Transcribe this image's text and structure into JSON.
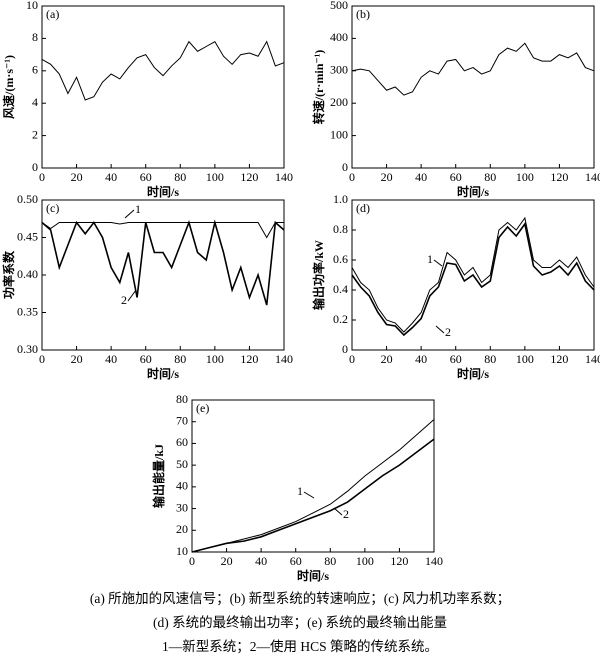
{
  "chart_data": [
    {
      "type": "line",
      "panel_label": "(a)",
      "xlabel": "时间/s",
      "ylabel": "风速/(m·s⁻¹)",
      "x": [
        0,
        5,
        10,
        15,
        20,
        25,
        30,
        35,
        40,
        45,
        50,
        55,
        60,
        65,
        70,
        75,
        80,
        85,
        90,
        95,
        100,
        105,
        110,
        115,
        120,
        125,
        130,
        135,
        140
      ],
      "values": [
        6.7,
        6.4,
        5.8,
        4.6,
        5.6,
        4.2,
        4.4,
        5.3,
        5.8,
        5.5,
        6.2,
        6.8,
        7.0,
        6.2,
        5.7,
        6.3,
        6.8,
        7.8,
        7.2,
        7.5,
        7.8,
        6.9,
        6.4,
        7.0,
        7.1,
        6.9,
        7.8,
        6.3,
        6.5
      ],
      "color": "#000000",
      "xlim": [
        0,
        140
      ],
      "xticks": [
        0,
        20,
        40,
        60,
        80,
        100,
        120,
        140
      ],
      "ylim": [
        0,
        10
      ],
      "yticks": [
        0,
        2,
        4,
        6,
        8,
        10
      ]
    },
    {
      "type": "line",
      "panel_label": "(b)",
      "xlabel": "时间/s",
      "ylabel": "转速/(r·min⁻¹)",
      "x": [
        0,
        5,
        10,
        15,
        20,
        25,
        30,
        35,
        40,
        45,
        50,
        55,
        60,
        65,
        70,
        75,
        80,
        85,
        90,
        95,
        100,
        105,
        110,
        115,
        120,
        125,
        130,
        135,
        140
      ],
      "values": [
        300,
        305,
        300,
        270,
        240,
        250,
        225,
        235,
        280,
        300,
        290,
        330,
        335,
        300,
        310,
        290,
        300,
        350,
        370,
        360,
        385,
        340,
        330,
        330,
        350,
        340,
        355,
        310,
        300
      ],
      "color": "#000000",
      "xlim": [
        0,
        140
      ],
      "xticks": [
        0,
        20,
        40,
        60,
        80,
        100,
        120,
        140
      ],
      "ylim": [
        0,
        500
      ],
      "yticks": [
        0,
        100,
        200,
        300,
        400,
        500
      ]
    },
    {
      "type": "line",
      "panel_label": "(c)",
      "xlabel": "时间/s",
      "ylabel": "功率系数",
      "x": [
        0,
        5,
        10,
        15,
        20,
        25,
        30,
        35,
        40,
        45,
        50,
        55,
        60,
        65,
        70,
        75,
        80,
        85,
        90,
        95,
        100,
        105,
        110,
        115,
        120,
        125,
        130,
        135,
        140
      ],
      "series": [
        {
          "name": "1",
          "color": "#000000",
          "values": [
            0.47,
            0.462,
            0.47,
            0.47,
            0.47,
            0.47,
            0.47,
            0.47,
            0.47,
            0.468,
            0.47,
            0.47,
            0.47,
            0.47,
            0.47,
            0.47,
            0.47,
            0.47,
            0.47,
            0.47,
            0.47,
            0.47,
            0.47,
            0.47,
            0.47,
            0.47,
            0.45,
            0.47,
            0.47
          ]
        },
        {
          "name": "2",
          "color": "#000000",
          "values": [
            0.47,
            0.46,
            0.41,
            0.44,
            0.47,
            0.455,
            0.47,
            0.45,
            0.41,
            0.39,
            0.43,
            0.37,
            0.47,
            0.43,
            0.43,
            0.41,
            0.44,
            0.47,
            0.43,
            0.42,
            0.47,
            0.43,
            0.38,
            0.41,
            0.37,
            0.4,
            0.36,
            0.47,
            0.46
          ]
        }
      ],
      "xlim": [
        0,
        140
      ],
      "xticks": [
        0,
        20,
        40,
        60,
        80,
        100,
        120,
        140
      ],
      "ylim": [
        0.3,
        0.5
      ],
      "yticks": [
        {
          "value": 0.3,
          "label": "0.30"
        },
        0.35,
        {
          "value": 0.4,
          "label": "0.40"
        },
        0.45,
        {
          "value": 0.5,
          "label": "0.50"
        }
      ]
    },
    {
      "type": "line",
      "panel_label": "(d)",
      "xlabel": "时间/s",
      "ylabel": "输出功率/kW",
      "x": [
        0,
        5,
        10,
        15,
        20,
        25,
        30,
        35,
        40,
        45,
        50,
        55,
        60,
        65,
        70,
        75,
        80,
        85,
        90,
        95,
        100,
        105,
        110,
        115,
        120,
        125,
        130,
        135,
        140
      ],
      "series": [
        {
          "name": "1",
          "color": "#000000",
          "values": [
            0.55,
            0.45,
            0.4,
            0.28,
            0.2,
            0.18,
            0.12,
            0.18,
            0.25,
            0.4,
            0.45,
            0.65,
            0.6,
            0.5,
            0.55,
            0.45,
            0.5,
            0.8,
            0.85,
            0.8,
            0.88,
            0.6,
            0.55,
            0.55,
            0.6,
            0.55,
            0.62,
            0.5,
            0.42
          ]
        },
        {
          "name": "2",
          "color": "#000000",
          "values": [
            0.5,
            0.42,
            0.36,
            0.25,
            0.17,
            0.16,
            0.1,
            0.15,
            0.21,
            0.36,
            0.42,
            0.58,
            0.57,
            0.46,
            0.5,
            0.42,
            0.46,
            0.75,
            0.82,
            0.76,
            0.84,
            0.56,
            0.5,
            0.52,
            0.56,
            0.5,
            0.58,
            0.46,
            0.4
          ]
        }
      ],
      "xlim": [
        0,
        140
      ],
      "xticks": [
        0,
        20,
        40,
        60,
        80,
        100,
        120,
        140
      ],
      "ylim": [
        0,
        1
      ],
      "yticks": [
        0,
        0.2,
        0.4,
        0.6,
        0.8,
        {
          "value": 1,
          "label": "1.0"
        }
      ]
    },
    {
      "type": "line",
      "panel_label": "(e)",
      "xlabel": "时间/s",
      "ylabel": "输出能量/kJ",
      "x": [
        0,
        10,
        20,
        30,
        40,
        50,
        60,
        70,
        80,
        90,
        100,
        110,
        120,
        130,
        140
      ],
      "series": [
        {
          "name": "1",
          "color": "#000000",
          "values": [
            10,
            12,
            14,
            16,
            18,
            21,
            24,
            28,
            32,
            38,
            45,
            51,
            57,
            64,
            71
          ]
        },
        {
          "name": "2",
          "color": "#000000",
          "values": [
            10,
            12,
            14,
            15,
            17,
            20,
            23,
            26,
            29,
            33,
            39,
            45,
            50,
            56,
            62
          ]
        }
      ],
      "xlim": [
        0,
        140
      ],
      "xticks": [
        0,
        20,
        40,
        60,
        80,
        100,
        120,
        140
      ],
      "ylim": [
        10,
        80
      ],
      "yticks": [
        10,
        20,
        30,
        40,
        50,
        60,
        70,
        80
      ]
    }
  ],
  "caption": [
    "(a)  所施加的风速信号；(b)  新型系统的转速响应；(c)  风力机功率系数；",
    "(d)  系统的最终输出功率；(e)  系统的最终输出能量",
    "1—新型系统；2—使用 HCS 策略的传统系统。"
  ]
}
